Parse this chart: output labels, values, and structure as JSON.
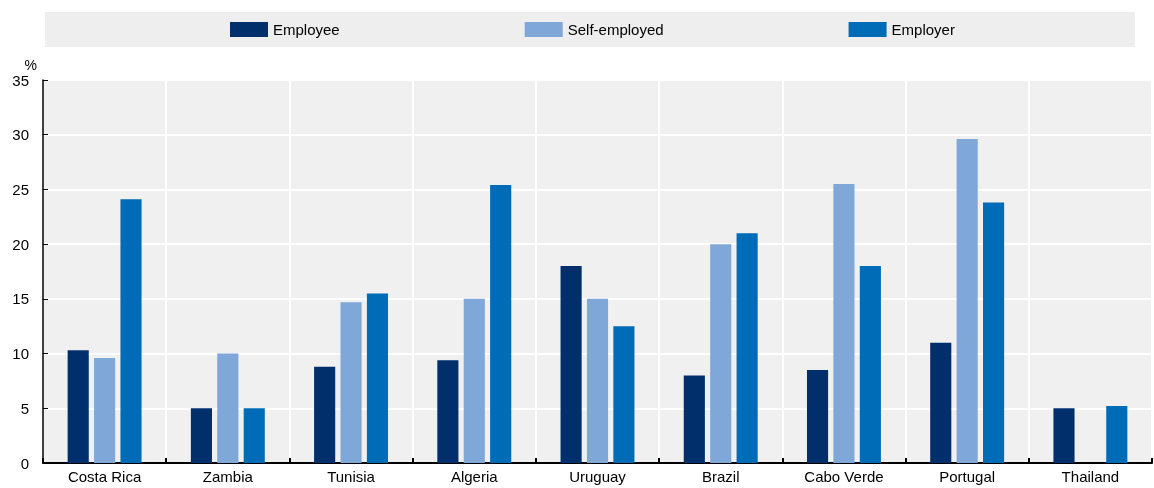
{
  "chart_data": {
    "type": "bar",
    "ylabel": "%",
    "categories": [
      "Costa Rica",
      "Zambia",
      "Tunisia",
      "Algeria",
      "Uruguay",
      "Brazil",
      "Cabo Verde",
      "Portugal",
      "Thailand"
    ],
    "series": [
      {
        "name": "Employee",
        "color": "#002f6c",
        "values": [
          10.3,
          5,
          8.8,
          9.4,
          18,
          8,
          8.5,
          11,
          5
        ]
      },
      {
        "name": "Self-employed",
        "color": "#7fa7d8",
        "values": [
          9.6,
          10,
          14.7,
          15,
          15,
          20,
          25.5,
          29.6,
          null
        ]
      },
      {
        "name": "Employer",
        "color": "#006bb6",
        "values": [
          24.1,
          5,
          15.5,
          25.4,
          12.5,
          21,
          18,
          23.8,
          5.2
        ]
      }
    ],
    "ylim": [
      0,
      35
    ],
    "yticks": [
      0,
      5,
      10,
      15,
      20,
      25,
      30,
      35
    ],
    "grid": true,
    "legend": "top"
  }
}
